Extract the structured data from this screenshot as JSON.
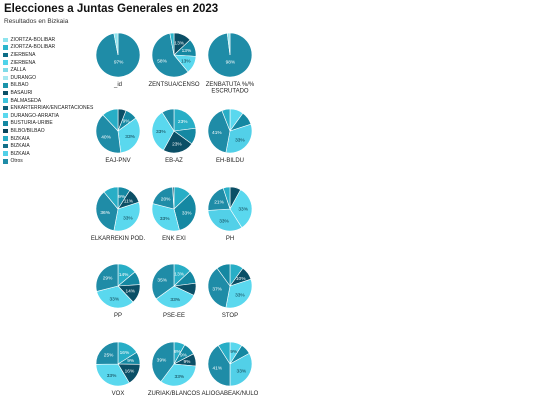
{
  "chart_data": {
    "type": "pie",
    "title": "Elecciones a Juntas Generales en 2023",
    "subtitle": "Resultados en Bizkaia",
    "legend": [
      {
        "name": "ZIORTZA-BOLIBAR",
        "color": "#8ee4ee"
      },
      {
        "name": "ZIORTZA-BOLIBAR",
        "color": "#2bb5cc"
      },
      {
        "name": "ZIERBENA",
        "color": "#0d6c86"
      },
      {
        "name": "ZIERBENA",
        "color": "#4fd3ea"
      },
      {
        "name": "ZALLA",
        "color": "#7fdbe8"
      },
      {
        "name": "DURANGO",
        "color": "#a6e8f0"
      },
      {
        "name": "BILBAO",
        "color": "#1a93aa"
      },
      {
        "name": "BASAURI",
        "color": "#0b4f66"
      },
      {
        "name": "BALMASEDA",
        "color": "#3fc4dc"
      },
      {
        "name": "ENKARTERRIAK/ENCARTACIONES",
        "color": "#0f5f78"
      },
      {
        "name": "DURANGO-ARRATIA",
        "color": "#5ad8ee"
      },
      {
        "name": "BUSTURIA-URIBE",
        "color": "#1588a2"
      },
      {
        "name": "BILBO/BILBAO",
        "color": "#08465c"
      },
      {
        "name": "BIZKAIA",
        "color": "#28aec6"
      },
      {
        "name": "BIZKAIA",
        "color": "#136f88"
      },
      {
        "name": "BIZKAIA",
        "color": "#52d0e8"
      },
      {
        "name": "Otros",
        "color": "#1f8ca7"
      }
    ],
    "pies": [
      {
        "label": "_id",
        "slices": [
          {
            "value": 97,
            "color": "#1f8ca7",
            "text": "97%"
          },
          {
            "value": 3,
            "color": "#8ee4ee",
            "text": ""
          }
        ]
      },
      {
        "label": "ZENTSUA/CENSO",
        "slices": [
          {
            "value": 13,
            "color": "#0b4f66",
            "text": "13%"
          },
          {
            "value": 13,
            "color": "#1588a2",
            "text": "13%"
          },
          {
            "value": 13,
            "color": "#5ad8ee",
            "text": "13%"
          },
          {
            "value": 58,
            "color": "#1f8ca7",
            "text": "58%"
          },
          {
            "value": 3,
            "color": "#2bb5cc",
            "text": ""
          }
        ]
      },
      {
        "label": "ZENBATUTA %/% ESCRUTADO",
        "slices": [
          {
            "value": 98,
            "color": "#1f8ca7",
            "text": "98%"
          },
          {
            "value": 2,
            "color": "#8ee4ee",
            "text": ""
          }
        ]
      },
      {
        "label": "EAJ-PNV",
        "slices": [
          {
            "value": 6,
            "color": "#0b4f66",
            "text": ""
          },
          {
            "value": 9,
            "color": "#1588a2",
            "text": "9%"
          },
          {
            "value": 33,
            "color": "#5ad8ee",
            "text": "33%"
          },
          {
            "value": 40,
            "color": "#1f8ca7",
            "text": "40%"
          },
          {
            "value": 12,
            "color": "#28aec6",
            "text": ""
          }
        ]
      },
      {
        "label": "EB-AZ",
        "slices": [
          {
            "value": 23,
            "color": "#28aec6",
            "text": "23%"
          },
          {
            "value": 12,
            "color": "#1588a2",
            "text": ""
          },
          {
            "value": 23,
            "color": "#0b4f66",
            "text": "23%"
          },
          {
            "value": 33,
            "color": "#5ad8ee",
            "text": "33%"
          },
          {
            "value": 9,
            "color": "#1f8ca7",
            "text": ""
          }
        ]
      },
      {
        "label": "EH-BILDU",
        "slices": [
          {
            "value": 10,
            "color": "#5ad8ee",
            "text": ""
          },
          {
            "value": 10,
            "color": "#1588a2",
            "text": ""
          },
          {
            "value": 33,
            "color": "#52d0e8",
            "text": "33%"
          },
          {
            "value": 41,
            "color": "#1f8ca7",
            "text": "41%"
          },
          {
            "value": 6,
            "color": "#28aec6",
            "text": ""
          }
        ]
      },
      {
        "label": "ELKARREKIN POD.",
        "slices": [
          {
            "value": 9,
            "color": "#1588a2",
            "text": "9%"
          },
          {
            "value": 11,
            "color": "#0b4f66",
            "text": "11%"
          },
          {
            "value": 33,
            "color": "#5ad8ee",
            "text": "33%"
          },
          {
            "value": 36,
            "color": "#1f8ca7",
            "text": "36%"
          },
          {
            "value": 11,
            "color": "#28aec6",
            "text": ""
          }
        ]
      },
      {
        "label": "ENK EXI",
        "slices": [
          {
            "value": 13,
            "color": "#28aec6",
            "text": ""
          },
          {
            "value": 33,
            "color": "#1588a2",
            "text": "33%"
          },
          {
            "value": 33,
            "color": "#5ad8ee",
            "text": "33%"
          },
          {
            "value": 20,
            "color": "#1f8ca7",
            "text": "20%"
          },
          {
            "value": 1,
            "color": "#0b4f66",
            "text": ""
          }
        ]
      },
      {
        "label": "PH",
        "slices": [
          {
            "value": 8,
            "color": "#0b4f66",
            "text": ""
          },
          {
            "value": 33,
            "color": "#5ad8ee",
            "text": "33%"
          },
          {
            "value": 33,
            "color": "#52d0e8",
            "text": "33%"
          },
          {
            "value": 21,
            "color": "#1f8ca7",
            "text": "21%"
          },
          {
            "value": 5,
            "color": "#28aec6",
            "text": ""
          }
        ]
      },
      {
        "label": "PP",
        "slices": [
          {
            "value": 14,
            "color": "#28aec6",
            "text": "14%"
          },
          {
            "value": 10,
            "color": "#1588a2",
            "text": ""
          },
          {
            "value": 14,
            "color": "#0b4f66",
            "text": "14%"
          },
          {
            "value": 33,
            "color": "#5ad8ee",
            "text": "33%"
          },
          {
            "value": 29,
            "color": "#1f8ca7",
            "text": "29%"
          }
        ]
      },
      {
        "label": "PSE-EE",
        "slices": [
          {
            "value": 13,
            "color": "#28aec6",
            "text": "13%"
          },
          {
            "value": 10,
            "color": "#1588a2",
            "text": ""
          },
          {
            "value": 9,
            "color": "#0b4f66",
            "text": ""
          },
          {
            "value": 33,
            "color": "#5ad8ee",
            "text": "33%"
          },
          {
            "value": 35,
            "color": "#1f8ca7",
            "text": "35%"
          }
        ]
      },
      {
        "label": "STOP",
        "slices": [
          {
            "value": 10,
            "color": "#28aec6",
            "text": ""
          },
          {
            "value": 10,
            "color": "#0b4f66",
            "text": "10%"
          },
          {
            "value": 33,
            "color": "#5ad8ee",
            "text": "33%"
          },
          {
            "value": 37,
            "color": "#1f8ca7",
            "text": "37%"
          },
          {
            "value": 10,
            "color": "#1588a2",
            "text": ""
          }
        ]
      },
      {
        "label": "VOX",
        "slices": [
          {
            "value": 16,
            "color": "#28aec6",
            "text": "16%"
          },
          {
            "value": 9,
            "color": "#1588a2",
            "text": "9%"
          },
          {
            "value": 16,
            "color": "#0b4f66",
            "text": "16%"
          },
          {
            "value": 33,
            "color": "#5ad8ee",
            "text": "33%"
          },
          {
            "value": 25,
            "color": "#1f8ca7",
            "text": "25%"
          }
        ]
      },
      {
        "label": "ZURIAK/BLANCOS",
        "slices": [
          {
            "value": 8,
            "color": "#28aec6",
            "text": "8%"
          },
          {
            "value": 9,
            "color": "#1588a2",
            "text": "9%"
          },
          {
            "value": 9,
            "color": "#0b4f66",
            "text": "9%"
          },
          {
            "value": 33,
            "color": "#5ad8ee",
            "text": "33%"
          },
          {
            "value": 39,
            "color": "#1f8ca7",
            "text": "39%"
          }
        ]
      },
      {
        "label": "ALIOGABEAK/NULO",
        "slices": [
          {
            "value": 9,
            "color": "#5ad8ee",
            "text": "9%"
          },
          {
            "value": 8,
            "color": "#1588a2",
            "text": ""
          },
          {
            "value": 33,
            "color": "#52d0e8",
            "text": "33%"
          },
          {
            "value": 41,
            "color": "#1f8ca7",
            "text": "41%"
          },
          {
            "value": 9,
            "color": "#28aec6",
            "text": ""
          }
        ]
      }
    ]
  }
}
